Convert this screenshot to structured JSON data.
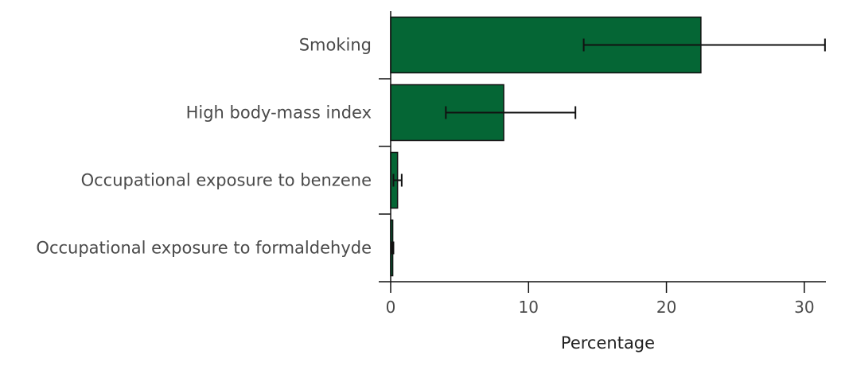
{
  "chart_data": {
    "type": "bar",
    "orientation": "horizontal",
    "title": "",
    "xlabel": "Percentage",
    "ylabel": "",
    "xlim": [
      0,
      35
    ],
    "x_ticks": [
      0,
      10,
      20,
      30
    ],
    "grid": false,
    "categories": [
      "Smoking",
      "High body-mass index",
      "Occupational exposure to benzene",
      "Occupational exposure to formaldehyde"
    ],
    "values": [
      22.5,
      8.2,
      0.5,
      0.15
    ],
    "error_low": [
      14.0,
      4.0,
      0.2,
      0.1
    ],
    "error_high": [
      31.5,
      13.4,
      0.8,
      0.2
    ],
    "colors": {
      "bar": "#056635",
      "bar_outline": "#111111",
      "axis": "#111111"
    }
  }
}
